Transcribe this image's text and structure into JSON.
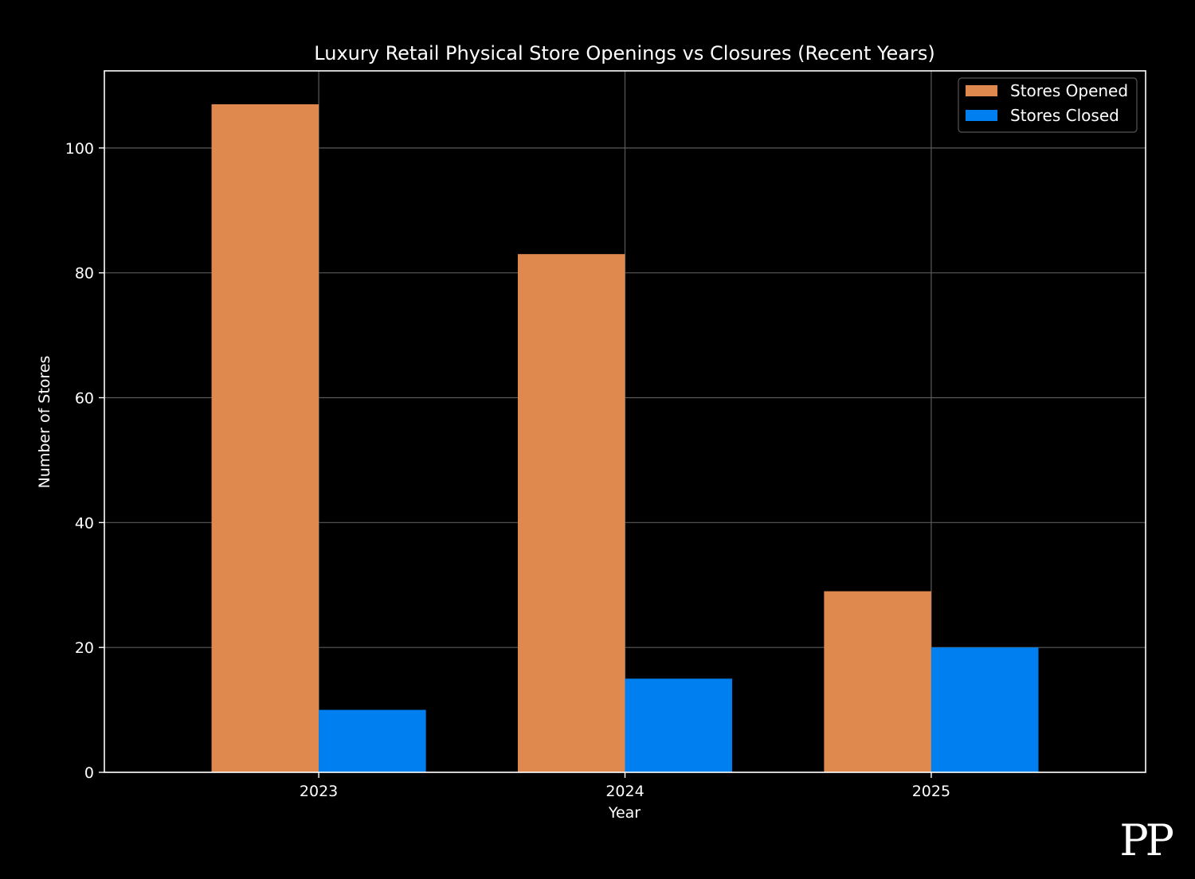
{
  "chart_data": {
    "type": "bar",
    "title": "Luxury Retail Physical Store Openings vs Closures (Recent Years)",
    "xlabel": "Year",
    "ylabel": "Number of Stores",
    "categories": [
      "2023",
      "2024",
      "2025"
    ],
    "series": [
      {
        "name": "Stores Opened",
        "values": [
          107,
          83,
          29
        ],
        "color": "#E0894E"
      },
      {
        "name": "Stores Closed",
        "values": [
          10,
          15,
          20
        ],
        "color": "#0080F0"
      }
    ],
    "ylim": [
      0,
      112.35
    ],
    "yticks": [
      0,
      20,
      40,
      60,
      80,
      100
    ],
    "grid": true,
    "legend_position": "top-right",
    "background": "#000000"
  },
  "watermark": {
    "text": "PP"
  }
}
